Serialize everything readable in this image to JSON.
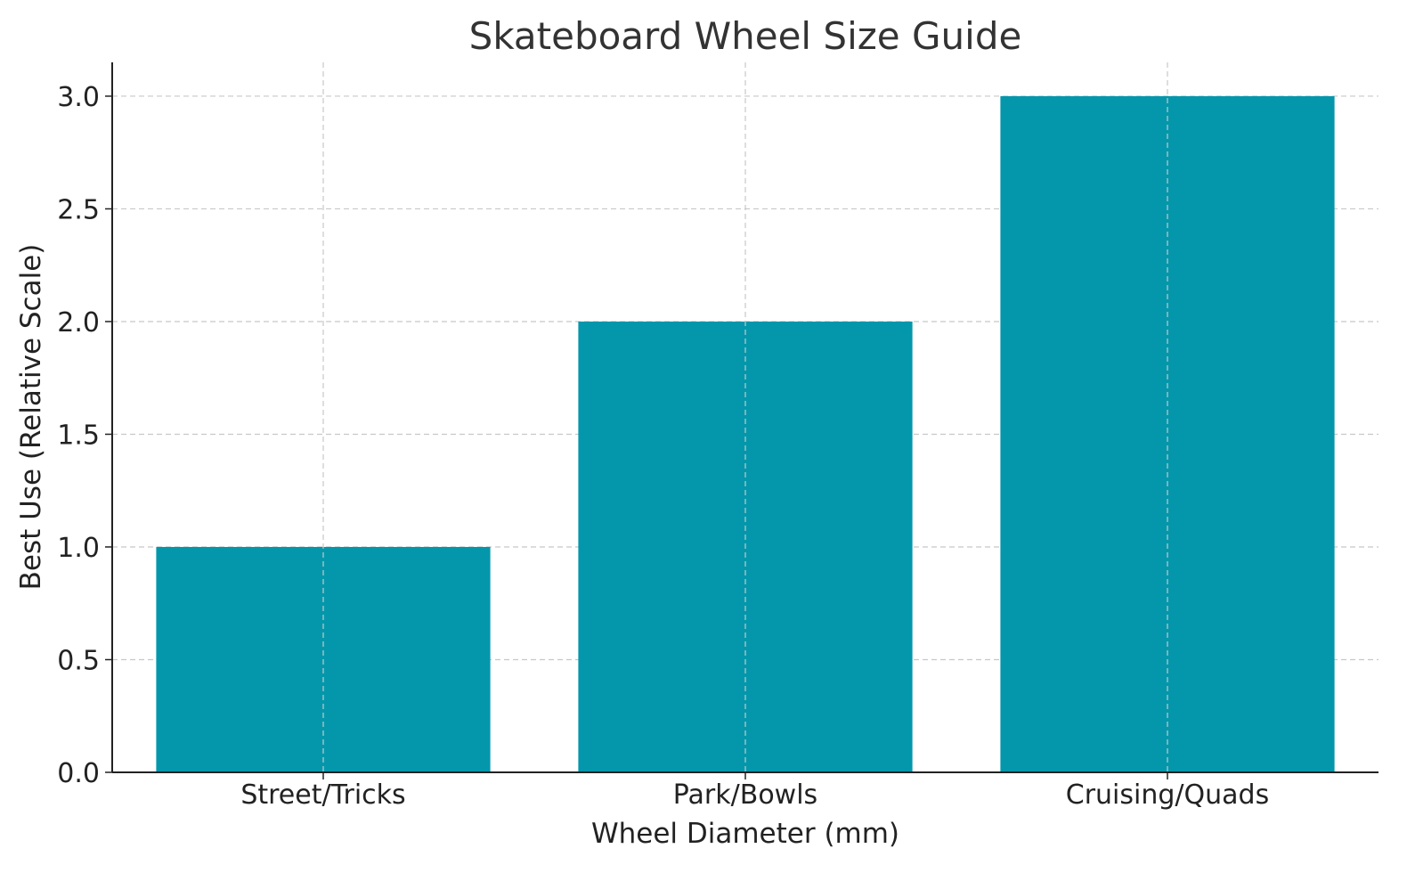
{
  "chart_data": {
    "type": "bar",
    "title": "Skateboard Wheel Size Guide",
    "xlabel": "Wheel Diameter (mm)",
    "ylabel": "Best Use (Relative Scale)",
    "categories": [
      "Street/Tricks",
      "Park/Bowls",
      "Cruising/Quads"
    ],
    "values": [
      1,
      2,
      3
    ],
    "ylim": [
      0,
      3.15
    ],
    "yticks": [
      "0.0",
      "0.5",
      "1.0",
      "1.5",
      "2.0",
      "2.5",
      "3.0"
    ],
    "bar_color": "#0497ab",
    "grid": true,
    "legend": "none"
  }
}
